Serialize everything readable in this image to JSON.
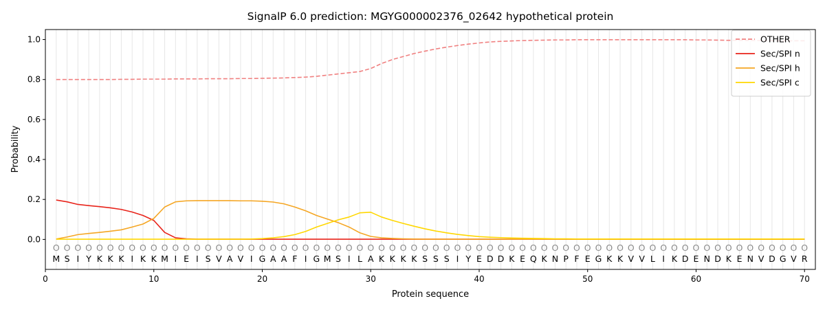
{
  "chart_data": {
    "type": "line",
    "title": "SignalP 6.0 prediction: MGYG000002376_02642 hypothetical protein",
    "xlabel": "Protein sequence",
    "ylabel": "Probability",
    "xlim": [
      0,
      71
    ],
    "ylim": [
      -0.15,
      1.05
    ],
    "x_ticks": [
      0,
      10,
      20,
      30,
      40,
      50,
      60,
      70
    ],
    "y_ticks": [
      0.0,
      0.2,
      0.4,
      0.6,
      0.8,
      1.0
    ],
    "x_tick_labels": [
      "0",
      "10",
      "20",
      "30",
      "40",
      "50",
      "60",
      "70"
    ],
    "y_tick_labels": [
      "0.0",
      "0.2",
      "0.4",
      "0.6",
      "0.8",
      "1.0"
    ],
    "legend_position": "top-right",
    "sequence": [
      "M",
      "S",
      "I",
      "Y",
      "K",
      "K",
      "K",
      "I",
      "K",
      "K",
      "M",
      "I",
      "E",
      "I",
      "S",
      "V",
      "A",
      "V",
      "I",
      "G",
      "A",
      "A",
      "F",
      "I",
      "G",
      "M",
      "S",
      "I",
      "L",
      "A",
      "K",
      "K",
      "K",
      "K",
      "S",
      "S",
      "S",
      "I",
      "Y",
      "E",
      "D",
      "D",
      "K",
      "E",
      "Q",
      "K",
      "N",
      "P",
      "F",
      "E",
      "G",
      "K",
      "K",
      "V",
      "V",
      "L",
      "I",
      "K",
      "D",
      "E",
      "N",
      "D",
      "K",
      "E",
      "N",
      "V",
      "D",
      "G",
      "V",
      "R"
    ],
    "predicted_labels": [
      "O",
      "O",
      "O",
      "O",
      "O",
      "O",
      "O",
      "O",
      "O",
      "O",
      "O",
      "O",
      "O",
      "O",
      "O",
      "O",
      "O",
      "O",
      "O",
      "O",
      "O",
      "O",
      "O",
      "O",
      "O",
      "O",
      "O",
      "O",
      "O",
      "O",
      "O",
      "O",
      "O",
      "O",
      "O",
      "O",
      "O",
      "O",
      "O",
      "O",
      "O",
      "O",
      "O",
      "O",
      "O",
      "O",
      "O",
      "O",
      "O",
      "O",
      "O",
      "O",
      "O",
      "O",
      "O",
      "O",
      "O",
      "O",
      "O",
      "O",
      "O",
      "O",
      "O",
      "O",
      "O",
      "O",
      "O",
      "O",
      "O",
      "O"
    ],
    "series": [
      {
        "name": "OTHER",
        "color": "#f08080",
        "dash": true,
        "values": [
          0.8,
          0.8,
          0.8,
          0.8,
          0.8,
          0.8,
          0.801,
          0.801,
          0.802,
          0.802,
          0.802,
          0.803,
          0.803,
          0.803,
          0.804,
          0.804,
          0.804,
          0.805,
          0.805,
          0.806,
          0.807,
          0.808,
          0.81,
          0.812,
          0.816,
          0.822,
          0.828,
          0.834,
          0.84,
          0.855,
          0.88,
          0.9,
          0.915,
          0.93,
          0.942,
          0.953,
          0.962,
          0.97,
          0.977,
          0.983,
          0.988,
          0.991,
          0.993,
          0.995,
          0.996,
          0.997,
          0.998,
          0.998,
          0.999,
          0.999,
          0.999,
          0.999,
          0.999,
          0.999,
          0.999,
          0.999,
          0.999,
          0.999,
          0.999,
          0.998,
          0.998,
          0.997,
          0.996,
          0.996,
          0.995,
          0.995,
          0.994,
          0.994,
          0.994,
          0.994
        ]
      },
      {
        "name": "Sec/SPI n",
        "color": "#e8231a",
        "dash": false,
        "values": [
          0.197,
          0.188,
          0.175,
          0.169,
          0.164,
          0.158,
          0.15,
          0.137,
          0.12,
          0.095,
          0.035,
          0.008,
          0.003,
          0.001,
          0.001,
          0.001,
          0.001,
          0.001,
          0.001,
          0.001,
          0.001,
          0.001,
          0.001,
          0.001,
          0.001,
          0.001,
          0.001,
          0.001,
          0.001,
          0.001,
          0.001,
          0.001,
          0.001,
          0.001,
          0.001,
          0.001,
          0.001,
          0.001,
          0.001,
          0.001,
          0.001,
          0.001,
          0.001,
          0.001,
          0.001,
          0.001,
          0.001,
          0.001,
          0.001,
          0.001,
          0.001,
          0.001,
          0.001,
          0.001,
          0.001,
          0.001,
          0.001,
          0.001,
          0.001,
          0.001,
          0.001,
          0.001,
          0.001,
          0.001,
          0.001,
          0.001,
          0.001,
          0.001,
          0.001,
          0.001
        ]
      },
      {
        "name": "Sec/SPI h",
        "color": "#f5a623",
        "dash": false,
        "values": [
          0.002,
          0.012,
          0.024,
          0.03,
          0.035,
          0.041,
          0.048,
          0.062,
          0.077,
          0.105,
          0.162,
          0.188,
          0.193,
          0.194,
          0.194,
          0.194,
          0.194,
          0.193,
          0.193,
          0.191,
          0.187,
          0.178,
          0.162,
          0.143,
          0.12,
          0.102,
          0.084,
          0.062,
          0.033,
          0.015,
          0.008,
          0.005,
          0.003,
          0.002,
          0.001,
          0.001,
          0.001,
          0.001,
          0.001,
          0.001,
          0.001,
          0.001,
          0.001,
          0.001,
          0.001,
          0.001,
          0.001,
          0.001,
          0.001,
          0.001,
          0.001,
          0.001,
          0.001,
          0.001,
          0.001,
          0.001,
          0.001,
          0.001,
          0.001,
          0.001,
          0.001,
          0.001,
          0.001,
          0.001,
          0.001,
          0.001,
          0.001,
          0.001,
          0.001,
          0.001
        ]
      },
      {
        "name": "Sec/SPI c",
        "color": "#ffd700",
        "dash": false,
        "values": [
          0.001,
          0.001,
          0.001,
          0.001,
          0.001,
          0.001,
          0.001,
          0.001,
          0.001,
          0.001,
          0.001,
          0.001,
          0.001,
          0.001,
          0.001,
          0.001,
          0.001,
          0.001,
          0.002,
          0.004,
          0.008,
          0.014,
          0.024,
          0.04,
          0.062,
          0.08,
          0.098,
          0.112,
          0.133,
          0.136,
          0.112,
          0.095,
          0.08,
          0.066,
          0.053,
          0.042,
          0.033,
          0.025,
          0.019,
          0.014,
          0.011,
          0.009,
          0.007,
          0.006,
          0.005,
          0.004,
          0.003,
          0.003,
          0.002,
          0.002,
          0.002,
          0.002,
          0.002,
          0.002,
          0.002,
          0.002,
          0.002,
          0.002,
          0.002,
          0.002,
          0.002,
          0.002,
          0.002,
          0.002,
          0.002,
          0.002,
          0.002,
          0.002,
          0.002,
          0.002
        ]
      }
    ]
  }
}
